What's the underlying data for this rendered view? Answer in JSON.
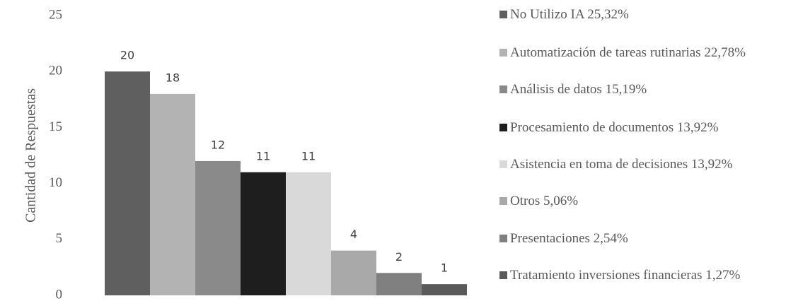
{
  "chart_data": {
    "type": "bar",
    "y_label": "Cantidad de Respuestas",
    "categories": [
      "No Utilizo IA 25,32%",
      "Automatización de tareas rutinarias 22,78%",
      "Análisis de datos 15,19%",
      "Procesamiento de documentos 13,92%",
      "Asistencia en toma de decisiones 13,92%",
      "Otros 5,06%",
      "Presentaciones 2,54%",
      "Tratamiento inversiones financieras 1,27%"
    ],
    "values": [
      20,
      18,
      12,
      11,
      11,
      4,
      2,
      1
    ],
    "colors": [
      "#5f5f5f",
      "#b3b3b3",
      "#8a8a8a",
      "#1e1e1e",
      "#d9d9d9",
      "#a9a9a9",
      "#808080",
      "#5a5a5a"
    ],
    "ylim": [
      0,
      25
    ],
    "yticks": [
      0,
      5,
      10,
      15,
      20,
      25
    ],
    "grid": false,
    "legend": "right"
  }
}
